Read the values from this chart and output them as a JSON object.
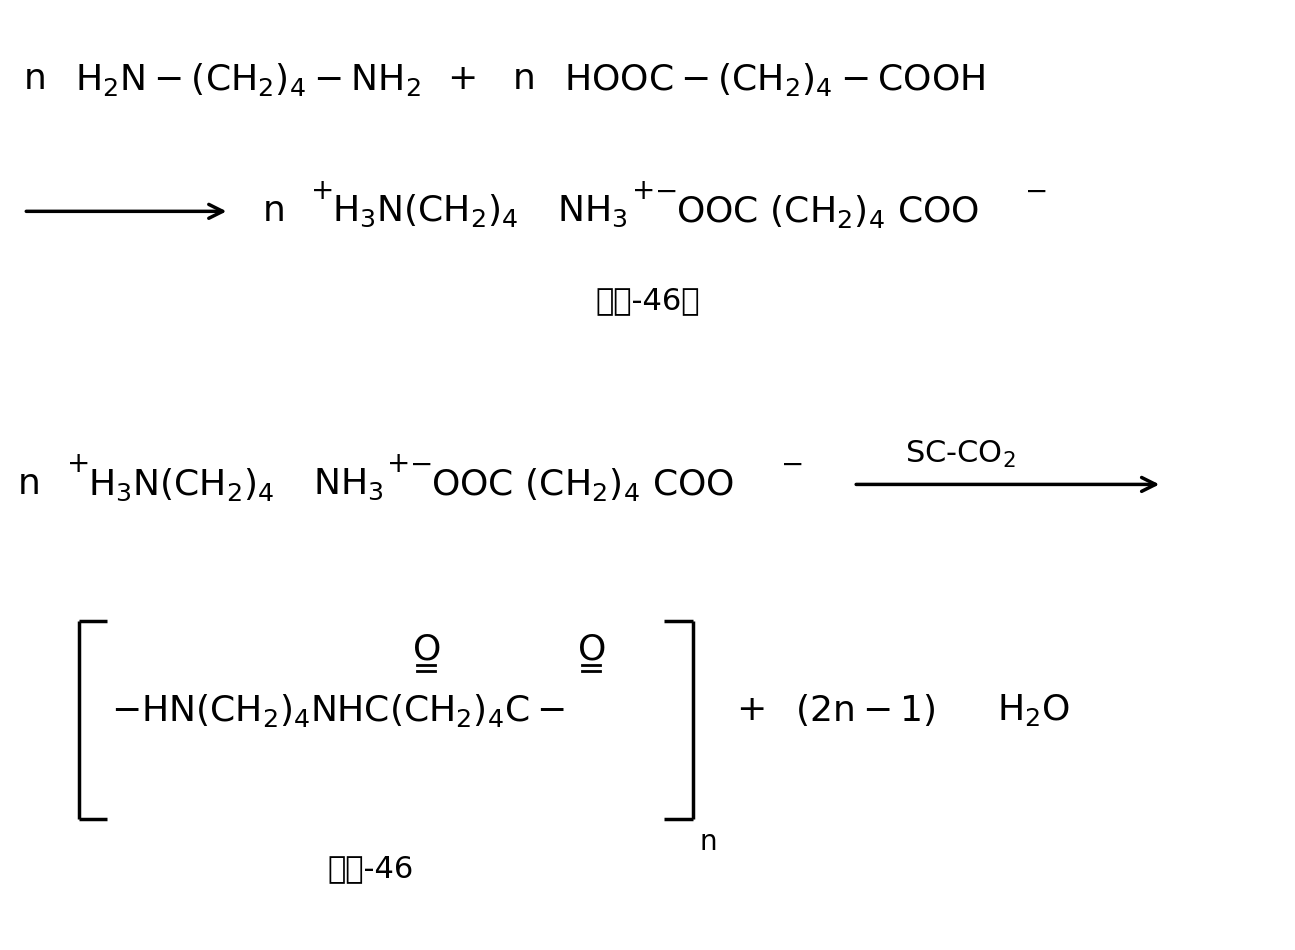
{
  "background_color": "#ffffff",
  "figsize": [
    12.95,
    9.5
  ],
  "dpi": 100,
  "font_main": 26,
  "font_sub": 20,
  "font_label": 22
}
